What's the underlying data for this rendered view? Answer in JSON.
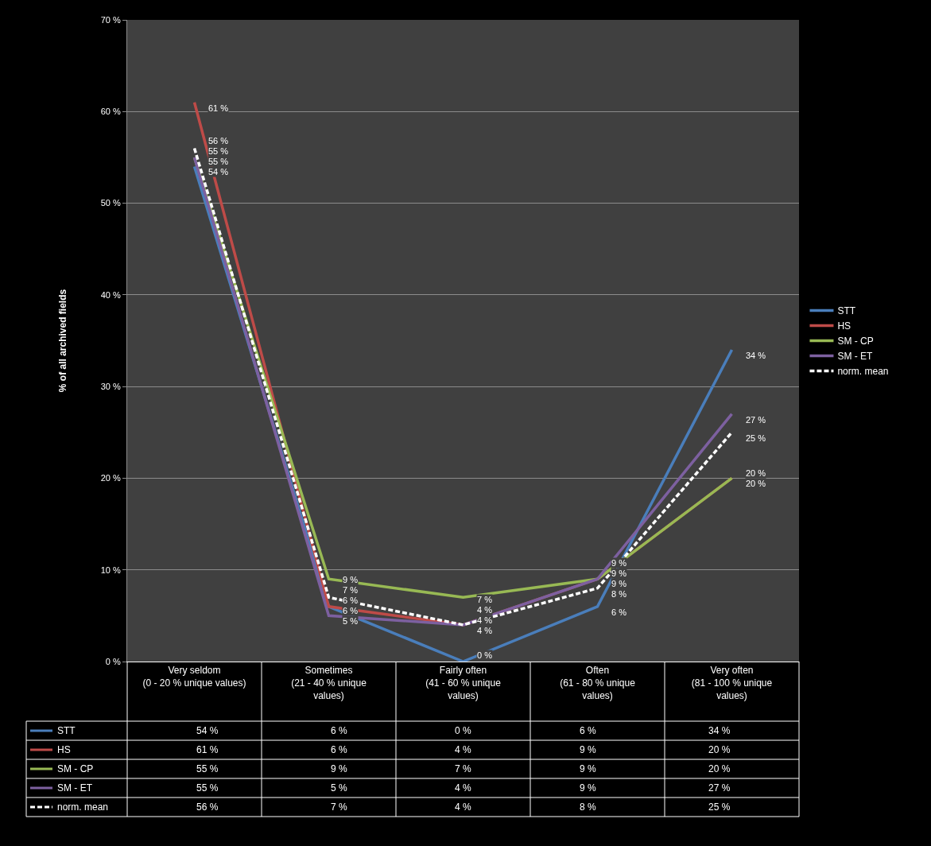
{
  "chart_data": {
    "type": "line",
    "ylabel": "% of all archived fields",
    "categories": [
      "Very seldom\n(0 - 20 % unique values)",
      "Sometimes\n(21 - 40 % unique\nvalues)",
      "Fairly often\n(41 - 60 % unique\nvalues)",
      "Often\n(61 - 80 % unique\nvalues)",
      "Very often\n(81 - 100 % unique\nvalues)"
    ],
    "series": [
      {
        "name": "STT",
        "color": "#4a7ebb",
        "values": [
          54,
          6,
          0,
          6,
          34
        ],
        "value_labels": [
          "54 %",
          "6 %",
          "0 %",
          "6 %",
          "34 %"
        ]
      },
      {
        "name": "HS",
        "color": "#be4b48",
        "values": [
          61,
          6,
          4,
          9,
          20
        ],
        "value_labels": [
          "61 %",
          "6 %",
          "4 %",
          "9 %",
          "20 %"
        ]
      },
      {
        "name": "SM - CP",
        "color": "#98b954",
        "values": [
          55,
          9,
          7,
          9,
          20
        ],
        "value_labels": [
          "55 %",
          "9 %",
          "7 %",
          "9 %",
          "20 %"
        ]
      },
      {
        "name": "SM - ET",
        "color": "#7d60a0",
        "values": [
          55,
          5,
          4,
          9,
          27
        ],
        "value_labels": [
          "55 %",
          "5 %",
          "4 %",
          "9 %",
          "27 %"
        ]
      },
      {
        "name": "norm. mean",
        "color": "#ffffff",
        "values": [
          56,
          7,
          4,
          8,
          25
        ],
        "value_labels": [
          "56 %",
          "7 %",
          "4 %",
          "8 %",
          "25 %"
        ],
        "line_style": "dashed"
      }
    ],
    "ylim": [
      0,
      70
    ],
    "yticks": [
      {
        "value": 0,
        "label": "0 %"
      },
      {
        "value": 10,
        "label": "10 %"
      },
      {
        "value": 20,
        "label": "20 %"
      },
      {
        "value": 30,
        "label": "30 %"
      },
      {
        "value": 40,
        "label": "40 %"
      },
      {
        "value": 50,
        "label": "50 %"
      },
      {
        "value": 60,
        "label": "60 %"
      },
      {
        "value": 70,
        "label": "70 %"
      }
    ],
    "grid": "y",
    "legend": "right",
    "marker": "none"
  }
}
